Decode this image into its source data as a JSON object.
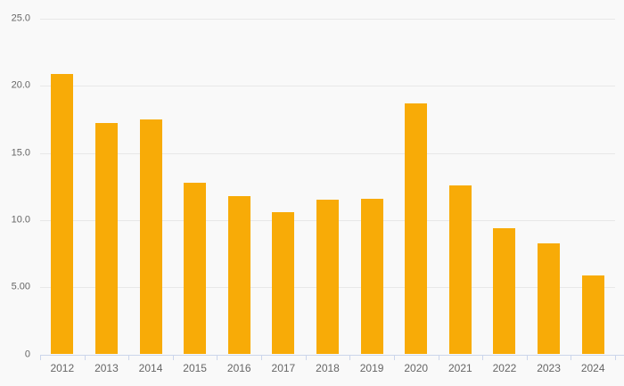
{
  "background_color": "#F9F9F9",
  "chart_data": {
    "type": "bar",
    "title": "",
    "xlabel": "",
    "ylabel": "",
    "categories": [
      "2012",
      "2013",
      "2014",
      "2015",
      "2016",
      "2017",
      "2018",
      "2019",
      "2020",
      "2021",
      "2022",
      "2023",
      "2024"
    ],
    "values": [
      20.9,
      17.2,
      17.5,
      12.8,
      11.8,
      10.6,
      11.5,
      11.6,
      18.7,
      12.6,
      9.4,
      8.3,
      5.9
    ],
    "ylim": [
      0,
      25
    ],
    "y_ticks": [
      {
        "value": 0,
        "label": "0"
      },
      {
        "value": 5,
        "label": "5.00"
      },
      {
        "value": 10,
        "label": "10.0"
      },
      {
        "value": 15,
        "label": "15.0"
      },
      {
        "value": 20,
        "label": "20.0"
      },
      {
        "value": 25,
        "label": "25.0"
      }
    ],
    "grid": true,
    "legend": false,
    "bar_color": "#F8AB07",
    "grid_color": "#E8E8E8",
    "axis_color": "#CCD6EB",
    "label_color": "#666666"
  }
}
